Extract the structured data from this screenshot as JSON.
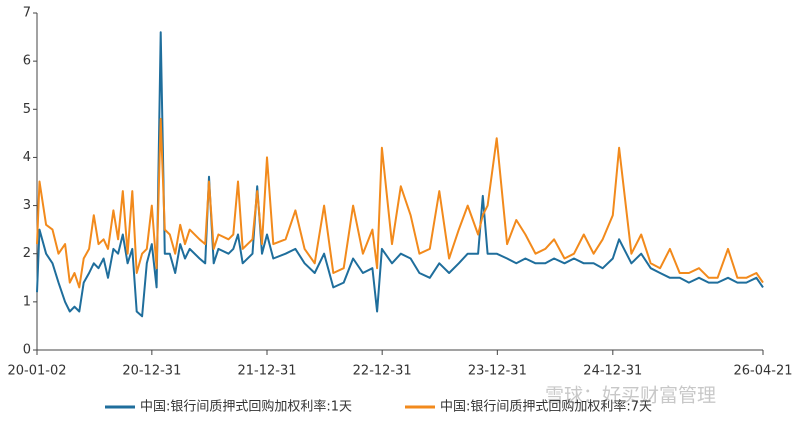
{
  "chart_data": {
    "type": "line",
    "x": [
      "20-01-02",
      "20-01-10",
      "20-01-31",
      "20-02-20",
      "20-03-10",
      "20-03-31",
      "20-04-15",
      "20-04-30",
      "20-05-15",
      "20-05-29",
      "20-06-15",
      "20-06-30",
      "20-07-15",
      "20-07-31",
      "20-08-14",
      "20-08-31",
      "20-09-15",
      "20-09-30",
      "20-10-15",
      "20-10-30",
      "20-11-13",
      "20-11-30",
      "20-12-15",
      "20-12-31",
      "21-01-15",
      "21-01-28",
      "21-02-10",
      "21-02-26",
      "21-03-15",
      "21-03-31",
      "21-04-15",
      "21-04-30",
      "21-05-31",
      "21-06-18",
      "21-06-30",
      "21-07-15",
      "21-07-30",
      "21-08-31",
      "21-09-15",
      "21-09-30",
      "21-10-15",
      "21-11-15",
      "21-11-30",
      "21-12-15",
      "21-12-31",
      "22-01-20",
      "22-02-28",
      "22-03-31",
      "22-04-29",
      "22-05-31",
      "22-06-30",
      "22-07-29",
      "22-08-31",
      "22-09-30",
      "22-10-31",
      "22-11-30",
      "22-12-15",
      "22-12-30",
      "23-01-31",
      "23-02-28",
      "23-03-31",
      "23-04-28",
      "23-05-31",
      "23-06-30",
      "23-07-31",
      "23-08-31",
      "23-09-28",
      "23-10-31",
      "23-11-15",
      "23-11-30",
      "23-12-29",
      "24-01-31",
      "24-02-29",
      "24-03-29",
      "24-04-30",
      "24-05-31",
      "24-06-28",
      "24-07-31",
      "24-08-30",
      "24-09-30",
      "24-10-31",
      "24-11-29",
      "24-12-31",
      "25-01-20",
      "25-02-28",
      "25-03-31",
      "25-04-30",
      "25-05-30",
      "25-06-30",
      "25-07-31",
      "25-08-29",
      "25-09-30",
      "25-10-31",
      "25-11-28",
      "25-12-31",
      "26-01-30",
      "26-02-27",
      "26-03-31",
      "26-04-21"
    ],
    "series": [
      {
        "name": "中国:银行间质押式回购加权利率:1天",
        "color": "#1f6e9c",
        "values": [
          1.2,
          2.5,
          2.0,
          1.8,
          1.4,
          1.0,
          0.8,
          0.9,
          0.8,
          1.4,
          1.6,
          1.8,
          1.7,
          1.9,
          1.5,
          2.1,
          2.0,
          2.4,
          1.8,
          2.1,
          0.8,
          0.7,
          1.8,
          2.2,
          1.3,
          6.6,
          2.0,
          2.0,
          1.6,
          2.2,
          1.9,
          2.1,
          1.9,
          1.8,
          3.6,
          1.8,
          2.1,
          2.0,
          2.1,
          2.4,
          1.8,
          2.0,
          3.4,
          2.0,
          2.4,
          1.9,
          2.0,
          2.1,
          1.8,
          1.6,
          2.0,
          1.3,
          1.4,
          1.9,
          1.6,
          1.7,
          0.8,
          2.1,
          1.8,
          2.0,
          1.9,
          1.6,
          1.5,
          1.8,
          1.6,
          1.8,
          2.0,
          2.0,
          3.2,
          2.0,
          2.0,
          1.9,
          1.8,
          1.9,
          1.8,
          1.8,
          1.9,
          1.8,
          1.9,
          1.8,
          1.8,
          1.7,
          1.9,
          2.3,
          1.8,
          2.0,
          1.7,
          1.6,
          1.5,
          1.5,
          1.4,
          1.5,
          1.4,
          1.4,
          1.5,
          1.4,
          1.4,
          1.5,
          1.3
        ]
      },
      {
        "name": "中国:银行间质押式回购加权利率:7天",
        "color": "#f28a1c",
        "values": [
          2.2,
          3.5,
          2.6,
          2.5,
          2.0,
          2.2,
          1.4,
          1.6,
          1.3,
          1.9,
          2.1,
          2.8,
          2.2,
          2.3,
          2.1,
          2.9,
          2.3,
          3.3,
          2.0,
          3.3,
          1.6,
          2.0,
          2.1,
          3.0,
          1.7,
          4.8,
          2.5,
          2.4,
          2.0,
          2.6,
          2.2,
          2.5,
          2.3,
          2.2,
          3.5,
          2.1,
          2.4,
          2.3,
          2.4,
          3.5,
          2.1,
          2.3,
          3.3,
          2.2,
          4.0,
          2.2,
          2.3,
          2.9,
          2.1,
          1.8,
          3.0,
          1.6,
          1.7,
          3.0,
          2.0,
          2.5,
          1.7,
          4.2,
          2.2,
          3.4,
          2.8,
          2.0,
          2.1,
          3.3,
          1.9,
          2.5,
          3.0,
          2.4,
          2.8,
          3.0,
          4.4,
          2.2,
          2.7,
          2.4,
          2.0,
          2.1,
          2.3,
          1.9,
          2.0,
          2.4,
          2.0,
          2.3,
          2.8,
          4.2,
          2.0,
          2.4,
          1.8,
          1.7,
          2.1,
          1.6,
          1.6,
          1.7,
          1.5,
          1.5,
          2.1,
          1.5,
          1.5,
          1.6,
          1.4
        ]
      }
    ],
    "xlim": [
      "20-01-02",
      "26-04-21"
    ],
    "xticks": [
      "20-01-02",
      "20-12-31",
      "21-12-31",
      "22-12-31",
      "23-12-31",
      "24-12-31",
      "26-04-21"
    ],
    "ylim": [
      0,
      7
    ],
    "yticks": [
      0,
      1,
      2,
      3,
      4,
      5,
      6,
      7
    ],
    "grid": false,
    "legend": "bottom",
    "watermark": "雪球：好买财富管理"
  }
}
